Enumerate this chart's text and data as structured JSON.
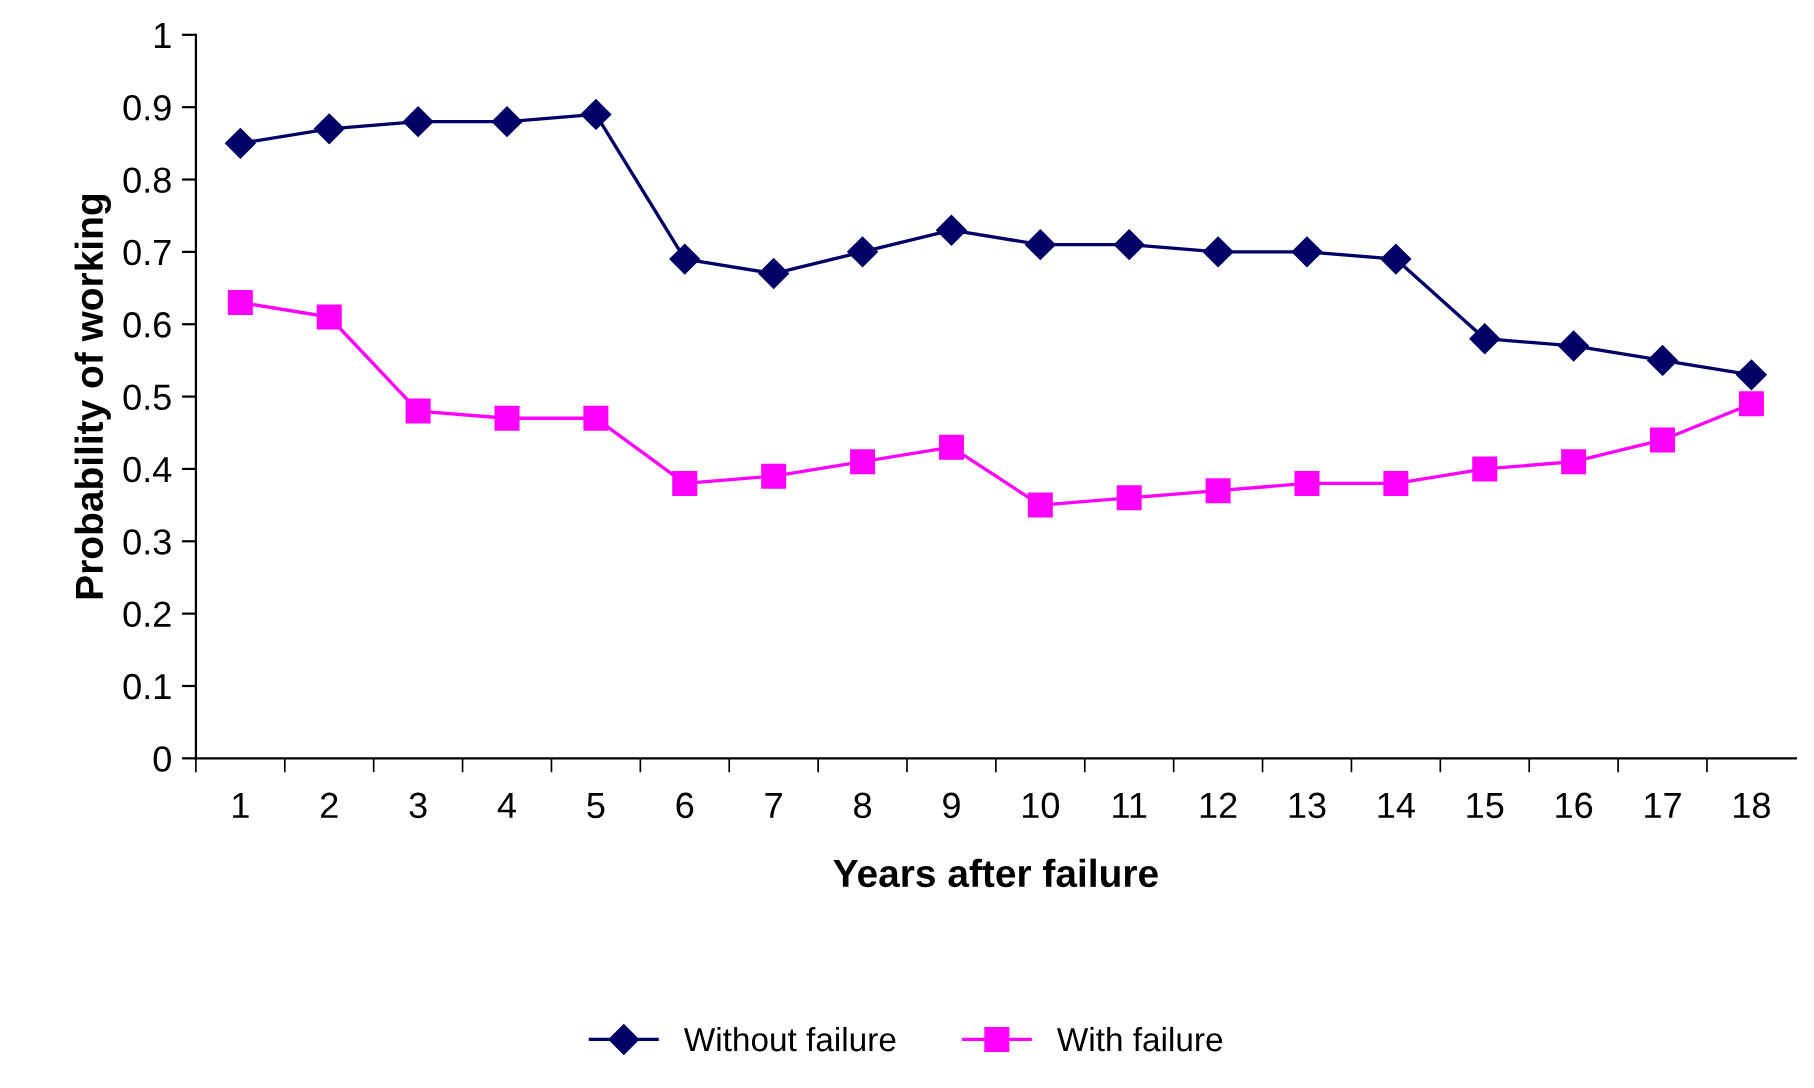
{
  "chart_data": {
    "type": "line",
    "xlabel": "Years after failure",
    "ylabel": "Probability of working",
    "categories": [
      "1",
      "2",
      "3",
      "4",
      "5",
      "6",
      "7",
      "8",
      "9",
      "10",
      "11",
      "12",
      "13",
      "14",
      "15",
      "16",
      "17",
      "18"
    ],
    "series": [
      {
        "name": "Without failure",
        "color": "#000066",
        "marker": "diamond",
        "values": [
          0.85,
          0.87,
          0.88,
          0.88,
          0.89,
          0.69,
          0.67,
          0.7,
          0.73,
          0.71,
          0.71,
          0.7,
          0.7,
          0.69,
          0.58,
          0.57,
          0.55,
          0.53
        ]
      },
      {
        "name": "With failure",
        "color": "#ff00ff",
        "marker": "square",
        "values": [
          0.63,
          0.61,
          0.48,
          0.47,
          0.47,
          0.38,
          0.39,
          0.41,
          0.43,
          0.35,
          0.36,
          0.37,
          0.38,
          0.38,
          0.4,
          0.41,
          0.44,
          0.49
        ]
      }
    ],
    "ylim": [
      0,
      1
    ],
    "yticks": [
      0,
      0.1,
      0.2,
      0.3,
      0.4,
      0.5,
      0.6,
      0.7,
      0.8,
      0.9,
      1
    ],
    "grid": false,
    "legend": "bottom",
    "line_style": "solid"
  }
}
